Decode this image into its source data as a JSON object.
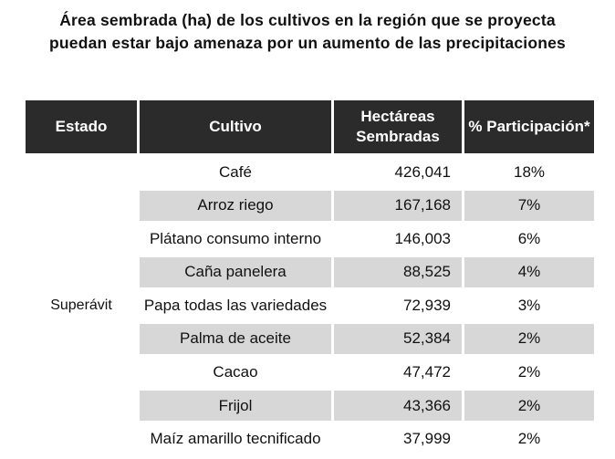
{
  "title": {
    "line1": "Área sembrada (ha) de los cultivos en la región que se proyecta",
    "line2": "puedan estar bajo amenaza por un aumento de las precipitaciones"
  },
  "table": {
    "headers": {
      "estado": "Estado",
      "cultivo": "Cultivo",
      "hectareas_line1": "Hectáreas",
      "hectareas_line2": "Sembradas",
      "participacion": "% Participación*"
    },
    "estado_value": "Superávit",
    "rows": [
      {
        "cultivo": "Café",
        "hectareas": "426,041",
        "participacion": "18%"
      },
      {
        "cultivo": "Arroz riego",
        "hectareas": "167,168",
        "participacion": "7%"
      },
      {
        "cultivo": "Plátano consumo interno",
        "hectareas": "146,003",
        "participacion": "6%"
      },
      {
        "cultivo": "Caña panelera",
        "hectareas": "88,525",
        "participacion": "4%"
      },
      {
        "cultivo": "Papa todas las variedades",
        "hectareas": "72,939",
        "participacion": "3%"
      },
      {
        "cultivo": "Palma de aceite",
        "hectareas": "52,384",
        "participacion": "2%"
      },
      {
        "cultivo": "Cacao",
        "hectareas": "47,472",
        "participacion": "2%"
      },
      {
        "cultivo": "Frijol",
        "hectareas": "43,366",
        "participacion": "2%"
      },
      {
        "cultivo": "Maíz amarillo tecnificado",
        "hectareas": "37,999",
        "participacion": "2%"
      }
    ]
  }
}
